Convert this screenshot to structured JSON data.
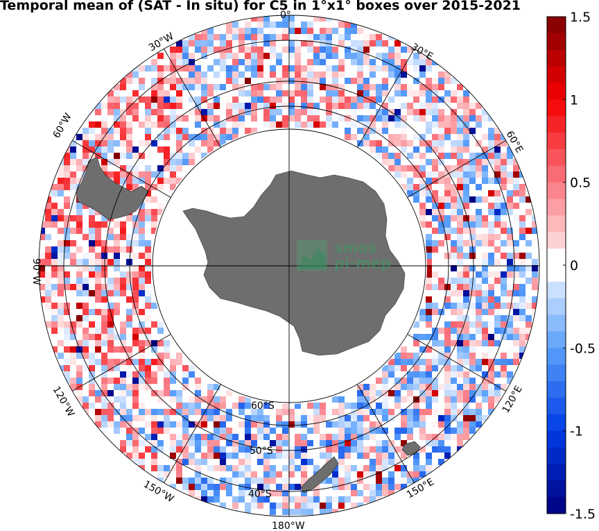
{
  "title": "Temporal mean of (SAT - In situ) for C5 in 1°x1° boxes over 2015-2021",
  "map": {
    "projection": "south-polar-stereographic",
    "land_color": "#6e6e6e",
    "value_field": "SAT - In situ",
    "latitude_labels": [
      "60°S",
      "50°S",
      "40°S"
    ],
    "longitude_labels": {
      "top": "0°",
      "lon_30e": "30°E",
      "lon_60e": "60°E",
      "lon_90e": "",
      "lon_120e": "120°E",
      "lon_150e": "150°E",
      "lon_180": "180°W",
      "lon_150w": "150°W",
      "lon_120w": "120°W",
      "lon_90w": "90°W",
      "lon_60w": "60°W",
      "lon_30w": "30°W"
    }
  },
  "colorbar": {
    "min": -1.5,
    "max": 1.5,
    "ticks": [
      "1.5",
      "1",
      "0.5",
      "0",
      "-0.5",
      "-1",
      "-1.5"
    ],
    "negative_color": "#00007f",
    "positive_color": "#7f0000",
    "zero_color": "#ffffff"
  },
  "watermark": {
    "line1": "smos",
    "line2": "pi-mep"
  }
}
